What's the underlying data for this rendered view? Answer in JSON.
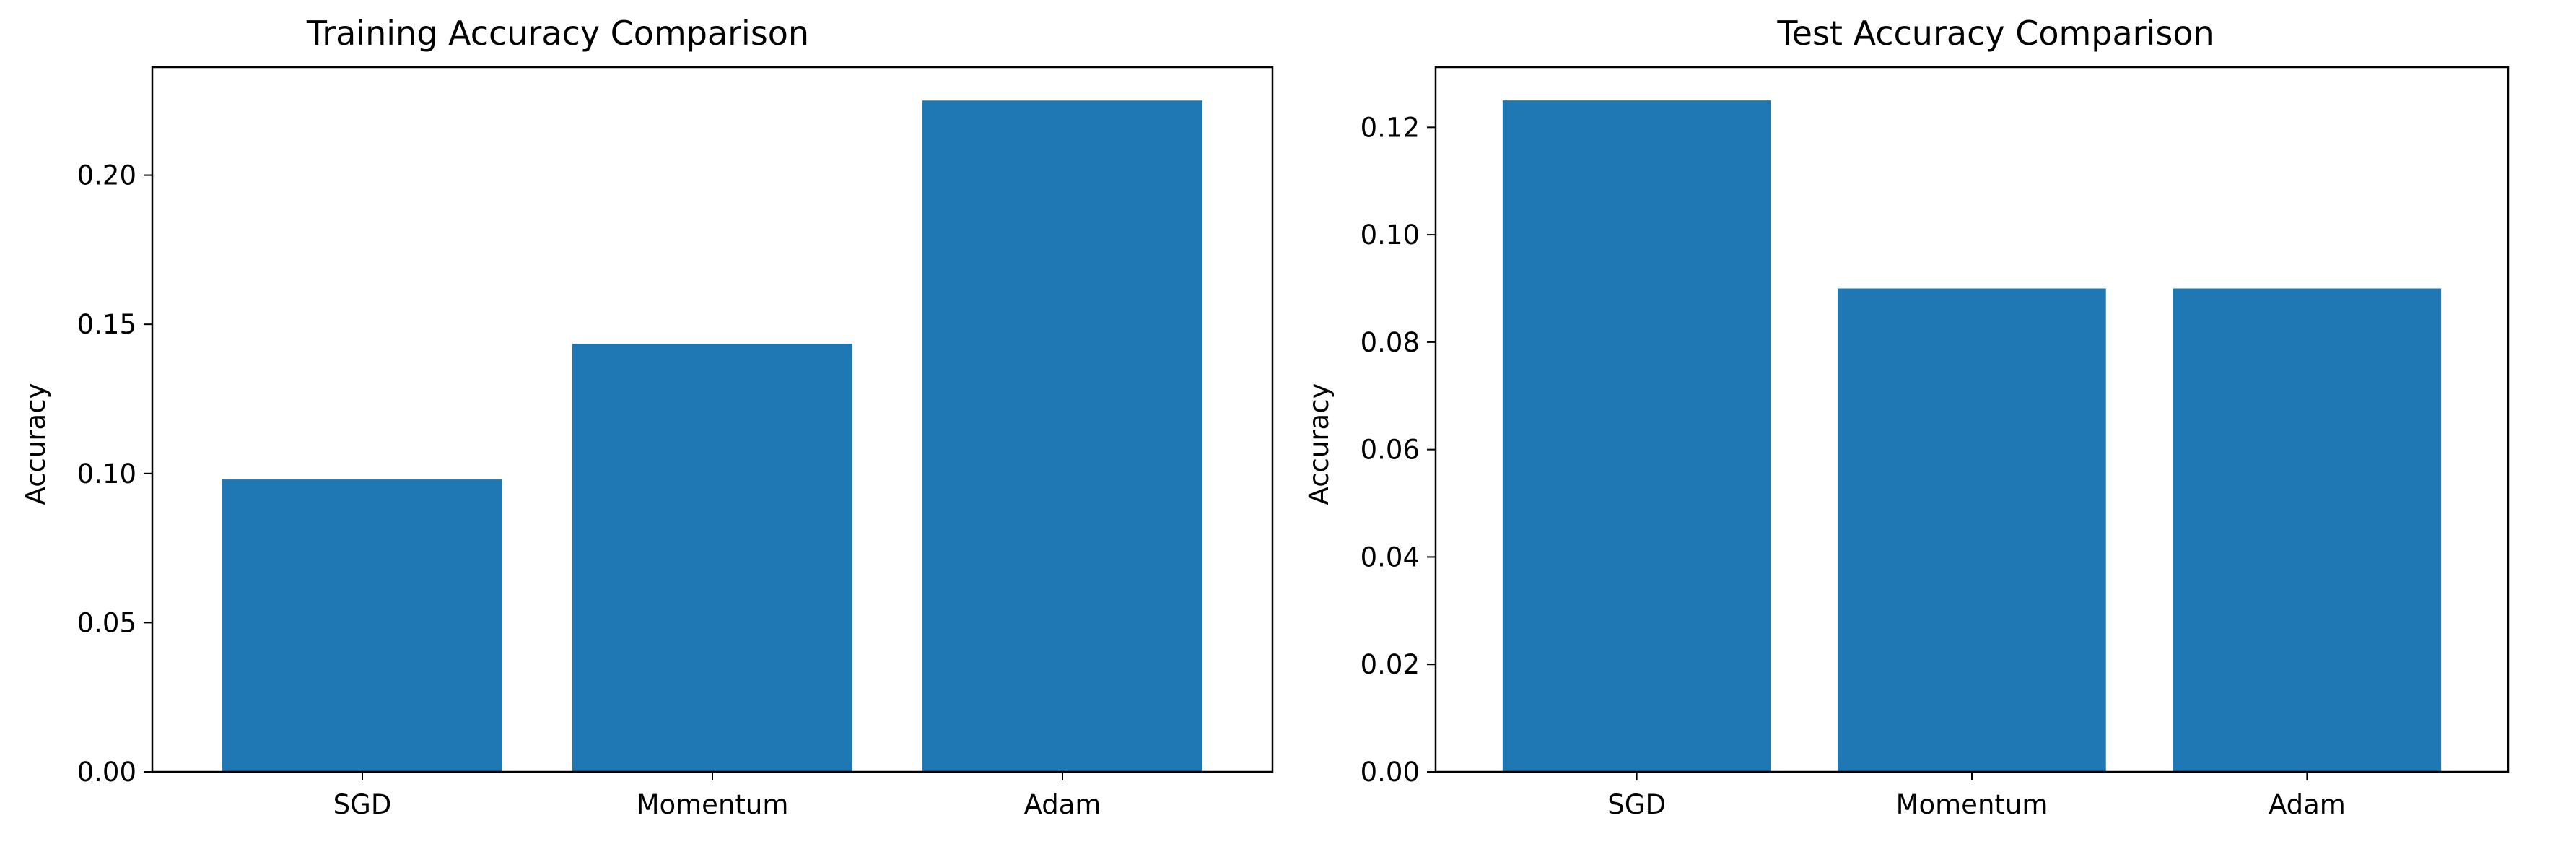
{
  "chart_data": [
    {
      "type": "bar",
      "title": "Training Accuracy Comparison",
      "xlabel": "",
      "ylabel": "Accuracy",
      "categories": [
        "SGD",
        "Momentum",
        "Adam"
      ],
      "values": [
        0.098,
        0.1435,
        0.225
      ],
      "ylim": [
        0,
        0.2362
      ],
      "yticks": [
        "0.00",
        "0.05",
        "0.10",
        "0.15",
        "0.20"
      ],
      "ytick_values": [
        0,
        0.05,
        0.1,
        0.15,
        0.2
      ],
      "bar_color": "#1f77b4",
      "grid": false
    },
    {
      "type": "bar",
      "title": "Test Accuracy Comparison",
      "xlabel": "",
      "ylabel": "Accuracy",
      "categories": [
        "SGD",
        "Momentum",
        "Adam"
      ],
      "values": [
        0.125,
        0.09,
        0.09
      ],
      "ylim": [
        0,
        0.1312
      ],
      "yticks": [
        "0.00",
        "0.02",
        "0.04",
        "0.06",
        "0.08",
        "0.10",
        "0.12"
      ],
      "ytick_values": [
        0,
        0.02,
        0.04,
        0.06,
        0.08,
        0.1,
        0.12
      ],
      "bar_color": "#1f77b4",
      "grid": false
    }
  ]
}
